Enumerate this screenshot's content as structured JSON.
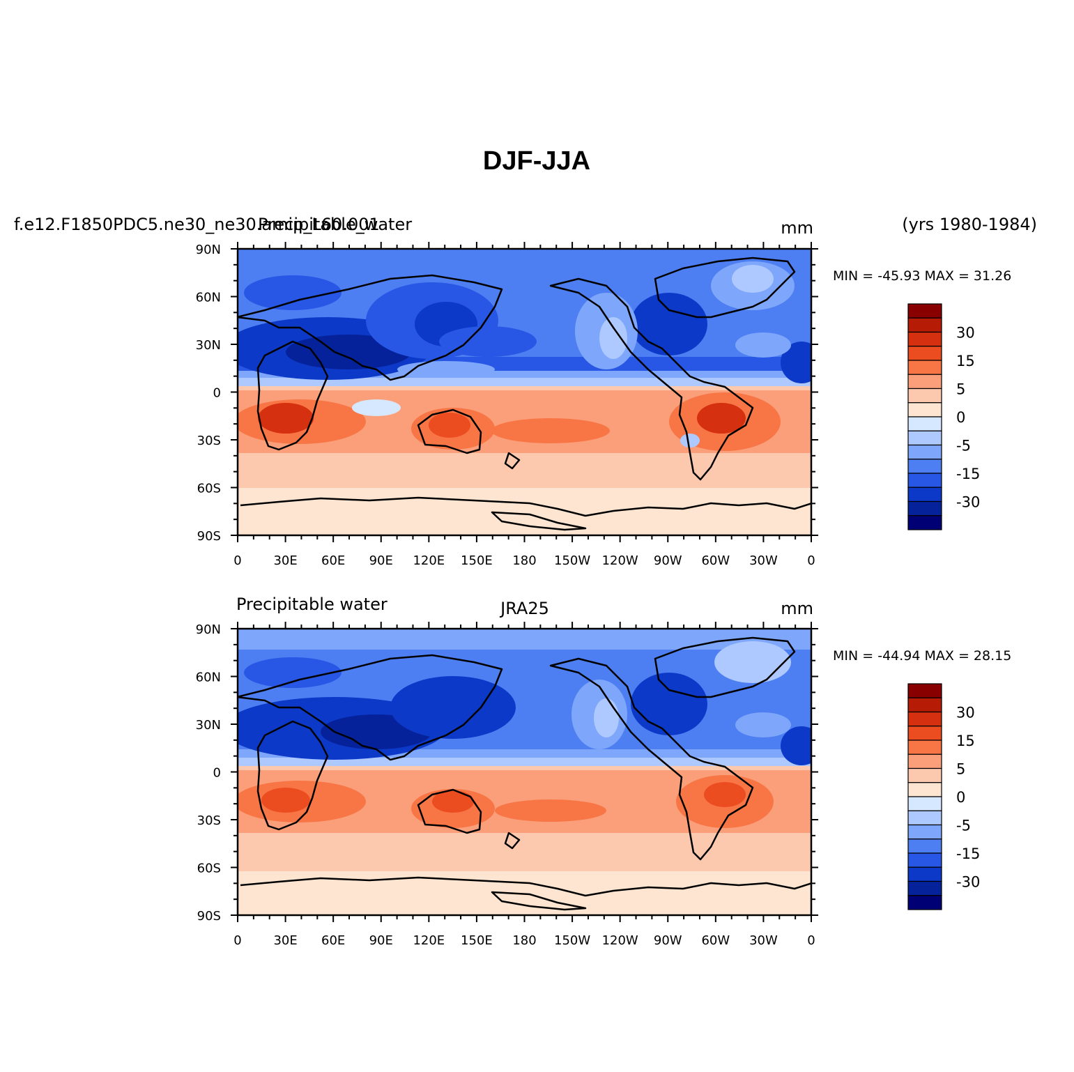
{
  "figure_title": "DJF-JJA",
  "palette": {
    "reds": [
      "#fde5d1",
      "#fdc9ae",
      "#fb9f7a",
      "#f87646",
      "#ec4d20",
      "#d5300f",
      "#b51b05",
      "#880000"
    ],
    "blues": [
      "#d5e8ff",
      "#adc9ff",
      "#7ea7fb",
      "#4e7ff2",
      "#2757e4",
      "#0d39c8",
      "#06229b",
      "#000074"
    ],
    "land_line": "#000000"
  },
  "colorbar": {
    "labels": [
      "30",
      "15",
      "5",
      "0",
      "-5",
      "-15",
      "-30"
    ],
    "bins": 16
  },
  "panels": [
    {
      "id": "model",
      "left_title": "f.e12.F1850PDC5.ne30_ne30.amip_L60.001",
      "center_title": "Precipitable_water",
      "right_title": "mm",
      "year_range": "(yrs 1980-1984)",
      "min_max": "MIN = -45.93 MAX =  31.26"
    },
    {
      "id": "obs",
      "left_title": "Precipitable water",
      "center_title": "JRA25",
      "right_title": "mm",
      "min_max": "MIN = -44.94 MAX =  28.15"
    }
  ],
  "axes": {
    "lon_labels": [
      "0",
      "30E",
      "60E",
      "90E",
      "120E",
      "150E",
      "180",
      "150W",
      "120W",
      "90W",
      "60W",
      "30W",
      "0"
    ],
    "lat_labels": [
      "90N",
      "60N",
      "30N",
      "0",
      "30S",
      "60S",
      "90S"
    ]
  }
}
